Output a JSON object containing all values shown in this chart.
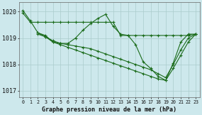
{
  "background_color": "#cde8ec",
  "grid_color": "#aacccc",
  "line_color": "#1a6b1a",
  "title": "Graphe pression niveau de la mer (hPa)",
  "xlim": [
    -0.5,
    23.5
  ],
  "ylim": [
    1016.75,
    1020.35
  ],
  "yticks": [
    1017,
    1018,
    1019,
    1020
  ],
  "xtick_labels": [
    "0",
    "1",
    "2",
    "3",
    "4",
    "5",
    "6",
    "7",
    "8",
    "9",
    "10",
    "11",
    "12",
    "13",
    "14",
    "15",
    "16",
    "17",
    "18",
    "19",
    "20",
    "21",
    "22",
    "23"
  ],
  "series": [
    {
      "x": [
        0,
        1,
        2,
        3,
        4,
        5,
        6,
        7,
        8,
        9,
        10,
        11,
        12,
        13,
        14,
        15,
        16,
        17,
        18,
        19,
        20,
        21,
        22,
        23
      ],
      "y": [
        1019.95,
        1019.6,
        1019.6,
        1019.6,
        1019.6,
        1019.6,
        1019.6,
        1019.6,
        1019.6,
        1019.6,
        1019.6,
        1019.6,
        1019.6,
        1019.1,
        1019.1,
        1019.1,
        1019.1,
        1019.1,
        1019.1,
        1019.1,
        1019.1,
        1019.1,
        1019.1,
        1019.15
      ]
    },
    {
      "x": [
        0,
        1,
        2,
        3,
        4,
        5,
        6,
        7,
        8,
        9,
        10,
        11,
        12,
        13,
        14,
        15,
        16,
        17,
        18,
        19,
        20,
        21,
        22,
        23
      ],
      "y": [
        1020.05,
        1019.65,
        1019.2,
        1019.1,
        1018.85,
        1018.8,
        1018.8,
        1019.0,
        1019.3,
        1019.55,
        1019.75,
        1019.9,
        1019.45,
        1019.15,
        1019.1,
        1018.75,
        1018.1,
        1017.85,
        1017.55,
        1017.4,
        1018.05,
        1018.85,
        1019.15,
        1019.15
      ]
    },
    {
      "x": [
        2,
        3,
        4,
        5,
        6,
        7,
        8,
        9,
        10,
        11,
        12,
        13,
        14,
        15,
        16,
        17,
        18,
        19,
        20,
        21,
        22,
        23
      ],
      "y": [
        1019.2,
        1019.05,
        1018.85,
        1018.75,
        1018.65,
        1018.55,
        1018.45,
        1018.35,
        1018.25,
        1018.15,
        1018.05,
        1017.95,
        1017.85,
        1017.75,
        1017.65,
        1017.55,
        1017.45,
        1017.4,
        1017.85,
        1018.35,
        1018.85,
        1019.15
      ]
    },
    {
      "x": [
        2,
        3,
        4,
        5,
        6,
        7,
        8,
        9,
        10,
        11,
        12,
        13,
        14,
        15,
        16,
        17,
        18,
        19,
        20,
        21,
        22,
        23
      ],
      "y": [
        1019.15,
        1019.05,
        1018.9,
        1018.8,
        1018.75,
        1018.7,
        1018.65,
        1018.6,
        1018.5,
        1018.4,
        1018.3,
        1018.2,
        1018.1,
        1018.0,
        1017.9,
        1017.8,
        1017.65,
        1017.5,
        1018.0,
        1018.55,
        1019.0,
        1019.15
      ]
    }
  ]
}
